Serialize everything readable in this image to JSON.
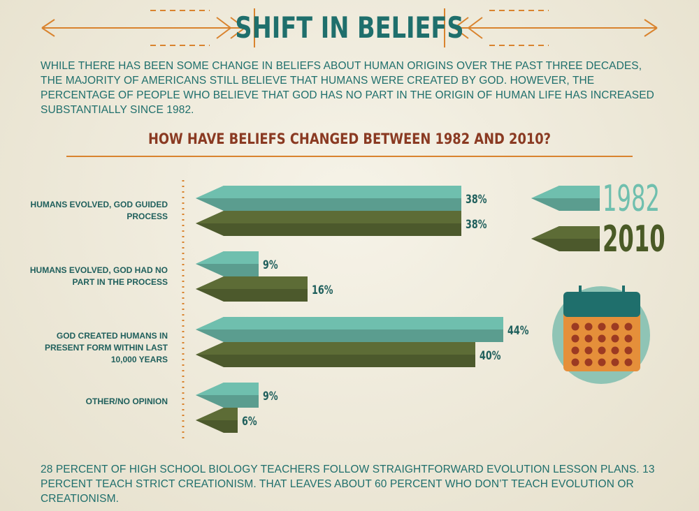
{
  "chart_data": {
    "type": "bar",
    "title": "SHIFT IN BELIEFS",
    "intro": "WHILE THERE HAS BEEN SOME CHANGE IN BELIEFS ABOUT HUMAN ORIGINS OVER THE PAST THREE DECADES, THE MAJORITY OF AMERICANS STILL BELIEVE THAT HUMANS WERE CREATED BY GOD. HOWEVER, THE PERCENTAGE OF PEOPLE WHO BELIEVE THAT GOD HAS NO PART IN THE ORIGIN OF HUMAN LIFE HAS INCREASED SUBSTANTIALLY SINCE 1982.",
    "subtitle": "HOW HAVE BELIEFS CHANGED BETWEEN 1982 AND 2010?",
    "categories": [
      "HUMANS EVOLVED, GOD GUIDED PROCESS",
      "HUMANS EVOLVED, GOD HAD NO PART IN THE PROCESS",
      "GOD CREATED HUMANS IN PRESENT FORM WITHIN LAST 10,000 YEARS",
      "OTHER/NO OPINION"
    ],
    "series": [
      {
        "name": "1982",
        "color": "#6fbfae",
        "values": [
          38,
          9,
          44,
          9
        ],
        "value_labels": [
          "38%",
          "9%",
          "44%",
          "9%"
        ]
      },
      {
        "name": "2010",
        "color": "#5d6c36",
        "values": [
          38,
          16,
          40,
          6
        ],
        "value_labels": [
          "38%",
          "16%",
          "40%",
          "6%"
        ]
      }
    ],
    "footer": "28 PERCENT OF HIGH SCHOOL BIOLOGY TEACHERS FOLLOW STRAIGHTFORWARD EVOLUTION LESSON PLANS. 13 PERCENT TEACH STRICT CREATIONISM. THAT LEAVES ABOUT 60 PERCENT WHO DON’T TEACH EVOLUTION OR CREATIONISM."
  }
}
